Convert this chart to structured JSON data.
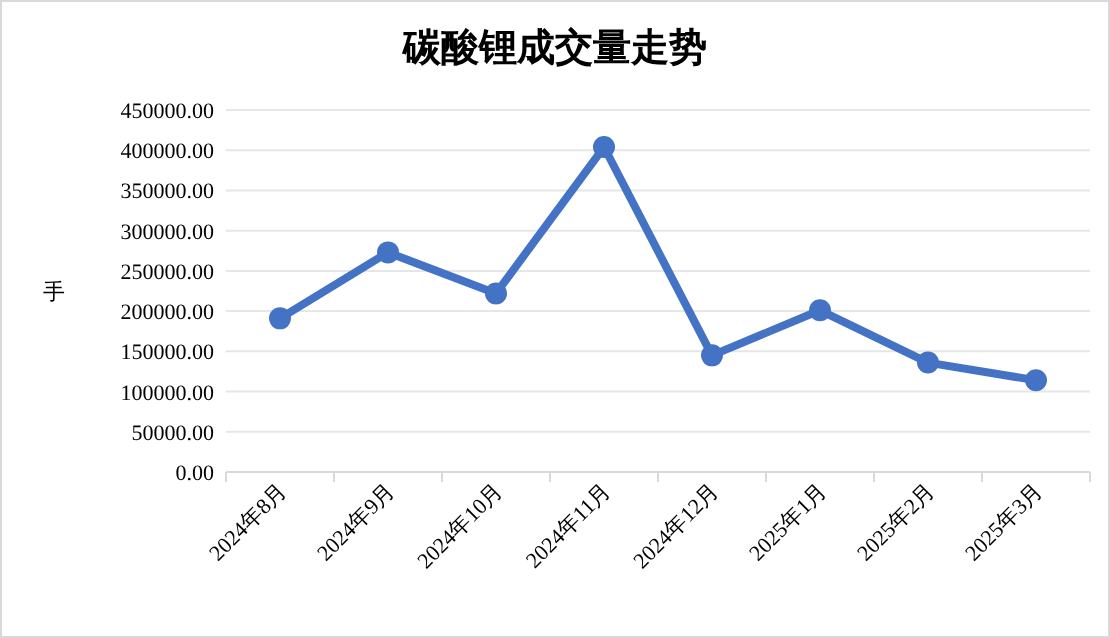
{
  "chart_data": {
    "type": "line",
    "title": "碳酸锂成交量走势",
    "ylabel": "手",
    "categories": [
      "2024年8月",
      "2024年9月",
      "2024年10月",
      "2024年11月",
      "2024年12月",
      "2025年1月",
      "2025年2月",
      "2025年3月"
    ],
    "series": [
      {
        "color": "#4472c4",
        "values": [
          191000,
          273000,
          222000,
          404000,
          145000,
          201000,
          136000,
          114000
        ]
      }
    ],
    "ylim": [
      0,
      450000
    ],
    "yticks": [
      {
        "value": 0,
        "label": "0.00"
      },
      {
        "value": 50000,
        "label": "50000.00"
      },
      {
        "value": 100000,
        "label": "100000.00"
      },
      {
        "value": 150000,
        "label": "150000.00"
      },
      {
        "value": 200000,
        "label": "200000.00"
      },
      {
        "value": 250000,
        "label": "250000.00"
      },
      {
        "value": 300000,
        "label": "300000.00"
      },
      {
        "value": 350000,
        "label": "350000.00"
      },
      {
        "value": 400000,
        "label": "400000.00"
      },
      {
        "value": 450000,
        "label": "450000.00"
      }
    ],
    "grid": "y",
    "marker": "circle",
    "line_style": "solid"
  }
}
